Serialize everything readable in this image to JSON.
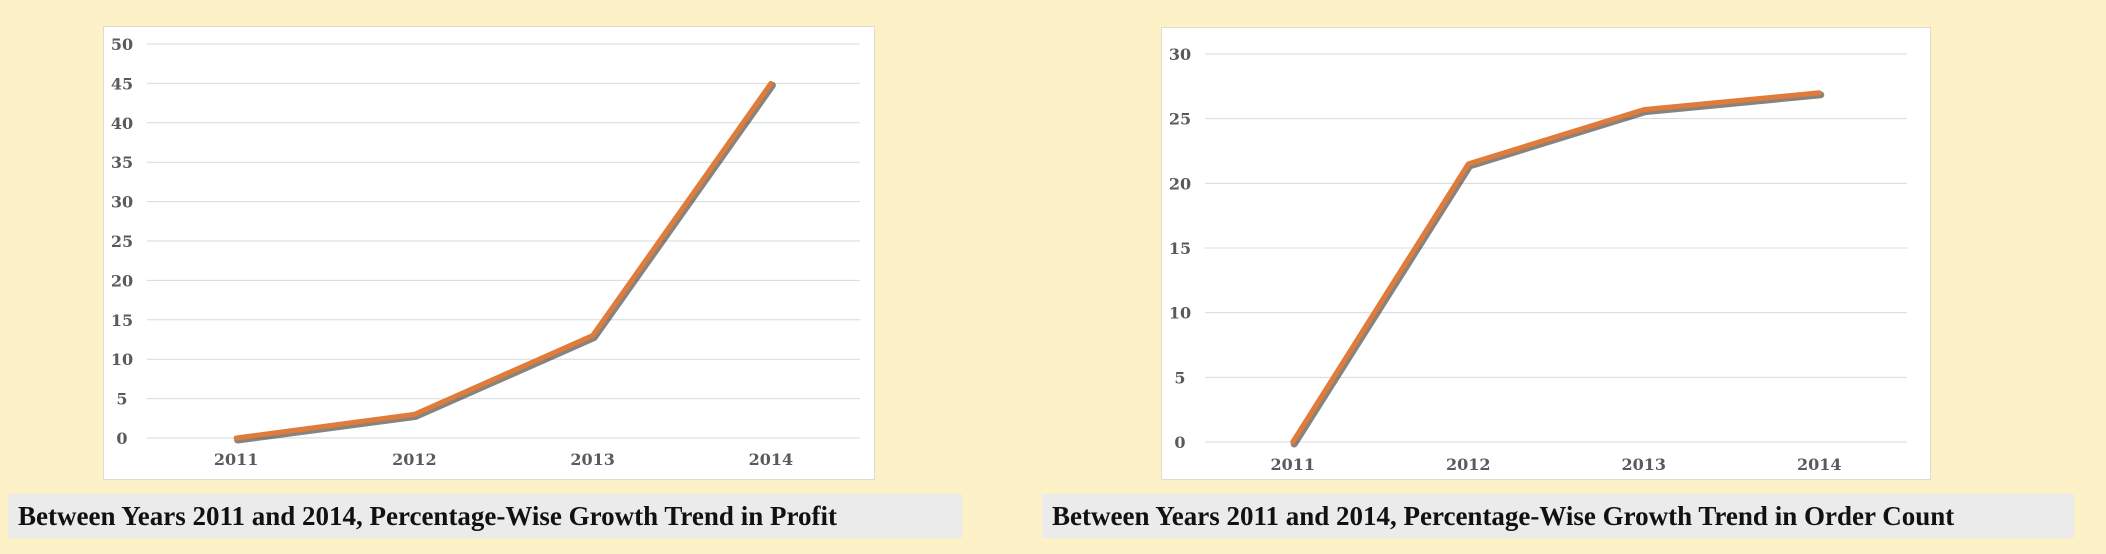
{
  "colors": {
    "background": "#fdf1c7",
    "series_line": "#e07b39",
    "caption_bg": "#ebebeb"
  },
  "captions": {
    "left": "Between Years 2011 and 2014, Percentage-Wise Growth Trend in Profit",
    "right": "Between Years 2011 and 2014, Percentage-Wise Growth Trend in Order Count"
  },
  "chart_data": [
    {
      "type": "line",
      "title": "Between Years 2011 and 2014, Percentage-Wise Growth Trend in Profit",
      "categories": [
        "2011",
        "2012",
        "2013",
        "2014"
      ],
      "series": [
        {
          "values": [
            0,
            3,
            13,
            45
          ]
        }
      ],
      "ylim": [
        0,
        50
      ],
      "yticks": [
        0,
        5,
        10,
        15,
        20,
        25,
        30,
        35,
        40,
        45,
        50
      ],
      "grid": true,
      "legend": "none"
    },
    {
      "type": "line",
      "title": "Between Years 2011 and 2014, Percentage-Wise Growth Trend in Order Count",
      "categories": [
        "2011",
        "2012",
        "2013",
        "2014"
      ],
      "series": [
        {
          "values": [
            0,
            21.5,
            25.7,
            27
          ]
        }
      ],
      "ylim": [
        0,
        30
      ],
      "yticks": [
        0,
        5,
        10,
        15,
        20,
        25,
        30
      ],
      "grid": true,
      "legend": "none"
    }
  ]
}
